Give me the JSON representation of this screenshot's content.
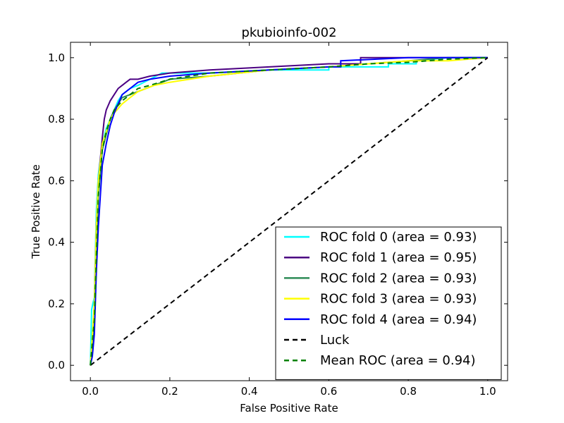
{
  "chart_data": {
    "type": "line",
    "title": "pkubioinfo-002",
    "xlabel": "False Positive Rate",
    "ylabel": "True Positive Rate",
    "xlim": [
      -0.05,
      1.05
    ],
    "ylim": [
      -0.05,
      1.05
    ],
    "xticks": [
      "0.0",
      "0.2",
      "0.4",
      "0.6",
      "0.8",
      "1.0"
    ],
    "yticks": [
      "0.0",
      "0.2",
      "0.4",
      "0.6",
      "0.8",
      "1.0"
    ],
    "grid": false,
    "legend_position": "lower-right",
    "series": [
      {
        "name": "ROC fold 0 (area = 0.93)",
        "color": "#00ffff",
        "dash": "solid",
        "x": [
          0,
          0.003,
          0.006,
          0.01,
          0.015,
          0.02,
          0.03,
          0.04,
          0.05,
          0.06,
          0.07,
          0.08,
          0.1,
          0.12,
          0.15,
          0.18,
          0.2,
          0.3,
          0.45,
          0.6,
          0.6,
          0.75,
          0.75,
          0.82,
          0.82,
          0.9,
          1.0
        ],
        "y": [
          0,
          0.18,
          0.2,
          0.22,
          0.5,
          0.62,
          0.72,
          0.77,
          0.8,
          0.83,
          0.86,
          0.88,
          0.9,
          0.91,
          0.93,
          0.95,
          0.95,
          0.95,
          0.96,
          0.96,
          0.97,
          0.97,
          0.98,
          0.98,
          0.99,
          1.0,
          1.0
        ]
      },
      {
        "name": "ROC fold 1 (area = 0.95)",
        "color": "#4b0082",
        "dash": "solid",
        "x": [
          0,
          0.005,
          0.01,
          0.015,
          0.02,
          0.03,
          0.035,
          0.04,
          0.05,
          0.06,
          0.07,
          0.08,
          0.09,
          0.1,
          0.12,
          0.15,
          0.2,
          0.3,
          0.45,
          0.6,
          0.68,
          0.68,
          0.8,
          0.9,
          1.0
        ],
        "y": [
          0,
          0.08,
          0.2,
          0.45,
          0.6,
          0.74,
          0.8,
          0.83,
          0.86,
          0.88,
          0.9,
          0.91,
          0.92,
          0.93,
          0.93,
          0.94,
          0.95,
          0.96,
          0.97,
          0.98,
          0.98,
          1.0,
          1.0,
          1.0,
          1.0
        ]
      },
      {
        "name": "ROC fold 2 (area = 0.93)",
        "color": "#2e8b57",
        "dash": "solid",
        "x": [
          0,
          0.005,
          0.01,
          0.015,
          0.02,
          0.03,
          0.04,
          0.05,
          0.06,
          0.07,
          0.08,
          0.1,
          0.12,
          0.14,
          0.16,
          0.2,
          0.3,
          0.45,
          0.6,
          0.7,
          0.8,
          0.9,
          1.0
        ],
        "y": [
          0,
          0.05,
          0.15,
          0.35,
          0.55,
          0.7,
          0.75,
          0.8,
          0.83,
          0.85,
          0.87,
          0.88,
          0.89,
          0.9,
          0.91,
          0.93,
          0.94,
          0.96,
          0.97,
          0.98,
          0.99,
          1.0,
          1.0
        ]
      },
      {
        "name": "ROC fold 3 (area = 0.93)",
        "color": "#ffff00",
        "dash": "solid",
        "x": [
          0,
          0.005,
          0.01,
          0.015,
          0.02,
          0.03,
          0.04,
          0.05,
          0.06,
          0.08,
          0.1,
          0.12,
          0.14,
          0.16,
          0.2,
          0.3,
          0.45,
          0.6,
          0.7,
          0.8,
          0.9,
          1.0
        ],
        "y": [
          0,
          0.1,
          0.2,
          0.45,
          0.6,
          0.72,
          0.76,
          0.8,
          0.82,
          0.85,
          0.87,
          0.89,
          0.9,
          0.91,
          0.92,
          0.94,
          0.96,
          0.97,
          0.98,
          0.99,
          0.99,
          1.0
        ]
      },
      {
        "name": "ROC fold 4 (area = 0.94)",
        "color": "#0000ff",
        "dash": "solid",
        "x": [
          0,
          0.005,
          0.01,
          0.015,
          0.02,
          0.025,
          0.03,
          0.04,
          0.05,
          0.06,
          0.07,
          0.08,
          0.1,
          0.12,
          0.15,
          0.2,
          0.3,
          0.45,
          0.6,
          0.63,
          0.63,
          0.8,
          0.9,
          1.0
        ],
        "y": [
          0,
          0.03,
          0.1,
          0.3,
          0.45,
          0.55,
          0.65,
          0.72,
          0.78,
          0.82,
          0.85,
          0.88,
          0.9,
          0.92,
          0.93,
          0.94,
          0.95,
          0.96,
          0.97,
          0.97,
          0.99,
          1.0,
          1.0,
          1.0
        ]
      },
      {
        "name": "Luck",
        "color": "#000000",
        "dash": "dashed",
        "x": [
          0,
          1
        ],
        "y": [
          0,
          1
        ]
      },
      {
        "name": "Mean ROC (area = 0.94)",
        "color": "#008000",
        "dash": "dashed",
        "x": [
          0,
          0.01,
          0.02,
          0.03,
          0.04,
          0.05,
          0.06,
          0.08,
          0.1,
          0.12,
          0.15,
          0.2,
          0.3,
          0.45,
          0.6,
          0.7,
          0.8,
          0.9,
          1.0
        ],
        "y": [
          0,
          0.15,
          0.55,
          0.7,
          0.76,
          0.8,
          0.83,
          0.86,
          0.88,
          0.9,
          0.91,
          0.93,
          0.95,
          0.96,
          0.97,
          0.98,
          0.985,
          0.995,
          1.0
        ]
      }
    ]
  }
}
